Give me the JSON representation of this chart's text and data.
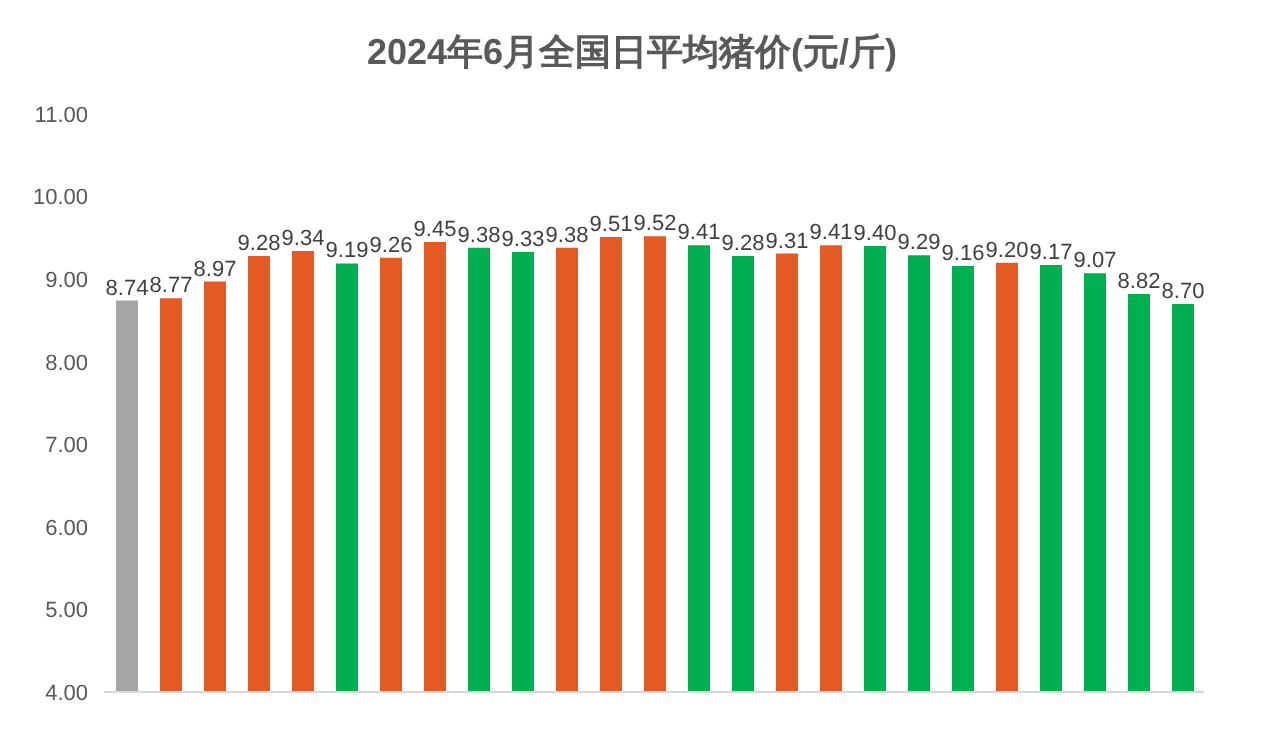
{
  "chart_data": {
    "type": "bar",
    "title": "2024年6月全国日平均猪价(元/斤)",
    "categories": [
      null,
      null,
      null,
      null,
      null,
      null,
      null,
      null,
      null,
      null,
      null,
      null,
      null,
      null,
      null,
      null,
      null,
      null,
      null,
      null,
      null,
      null,
      null,
      null,
      null
    ],
    "values": [
      8.74,
      8.77,
      8.97,
      9.28,
      9.34,
      9.19,
      9.26,
      9.45,
      9.38,
      9.33,
      9.38,
      9.51,
      9.52,
      9.41,
      9.28,
      9.31,
      9.41,
      9.4,
      9.29,
      9.16,
      9.2,
      9.17,
      9.07,
      8.82,
      8.7
    ],
    "value_labels": [
      "8.74",
      "8.77",
      "8.97",
      "9.28",
      "9.34",
      "9.19",
      "9.26",
      "9.45",
      "9.38",
      "9.33",
      "9.38",
      "9.51",
      "9.52",
      "9.41",
      "9.28",
      "9.31",
      "9.41",
      "9.40",
      "9.29",
      "9.16",
      "9.20",
      "9.17",
      "9.07",
      "8.82",
      "8.70"
    ],
    "colors": [
      "#a5a5a5",
      "#e35a24",
      "#e35a24",
      "#e35a24",
      "#e35a24",
      "#00b050",
      "#e35a24",
      "#e35a24",
      "#00b050",
      "#00b050",
      "#e35a24",
      "#e35a24",
      "#e35a24",
      "#00b050",
      "#00b050",
      "#e35a24",
      "#e35a24",
      "#00b050",
      "#00b050",
      "#00b050",
      "#e35a24",
      "#00b050",
      "#00b050",
      "#00b050",
      "#00b050"
    ],
    "ylim": [
      4,
      11
    ],
    "yticks": [
      {
        "value": 4,
        "label": "4.00"
      },
      {
        "value": 5,
        "label": "5.00"
      },
      {
        "value": 6,
        "label": "6.00"
      },
      {
        "value": 7,
        "label": "7.00"
      },
      {
        "value": 8,
        "label": "8.00"
      },
      {
        "value": 9,
        "label": "9.00"
      },
      {
        "value": 10,
        "label": "10.00"
      },
      {
        "value": 11,
        "label": "11.00"
      }
    ]
  }
}
